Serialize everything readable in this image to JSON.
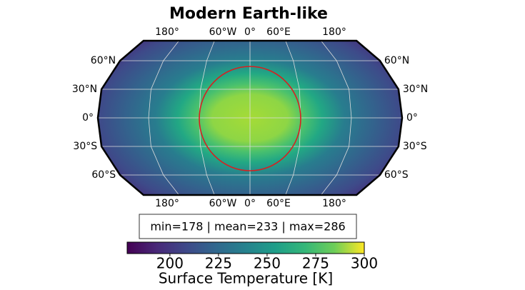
{
  "chart_data": {
    "type": "map",
    "title": "Modern Earth-like",
    "lon_labels": [
      "180°",
      "60°W",
      "0°",
      "60°E",
      "180°"
    ],
    "lat_labels": [
      "60°N",
      "30°N",
      "0°",
      "30°S",
      "60°S"
    ],
    "stats": "min=178 | mean=233 | max=286",
    "colorbar": {
      "label": "Surface Temperature [K]",
      "lim": [
        178,
        300
      ],
      "ticks": [
        200,
        225,
        250,
        275,
        300
      ]
    }
  }
}
